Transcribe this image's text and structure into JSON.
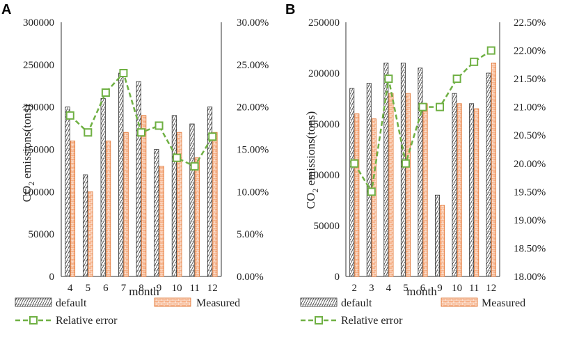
{
  "chart_data": [
    {
      "panel": "A",
      "type": "bar",
      "categories": [
        "4",
        "5",
        "6",
        "7",
        "8",
        "9",
        "10",
        "11",
        "12"
      ],
      "series": [
        {
          "name": "default",
          "values": [
            200000,
            120000,
            210000,
            240000,
            230000,
            150000,
            190000,
            180000,
            200000
          ]
        },
        {
          "name": "Measured",
          "values": [
            160000,
            100000,
            160000,
            170000,
            190000,
            130000,
            170000,
            140000,
            170000
          ]
        }
      ],
      "line_series": {
        "name": "Relative error",
        "values": [
          0.19,
          0.17,
          0.217,
          0.24,
          0.17,
          0.178,
          0.14,
          0.13,
          0.165
        ]
      },
      "xlabel": "month",
      "ylabel_prefix": "CO",
      "ylabel_sub": "2",
      "ylabel_suffix": " emissions(tons)",
      "ylim": [
        0,
        300000
      ],
      "y2lim": [
        0,
        0.3
      ],
      "yticks": [
        "0",
        "50000",
        "100000",
        "150000",
        "200000",
        "250000",
        "300000"
      ],
      "y2ticks": [
        "0.00%",
        "5.00%",
        "10.00%",
        "15.00%",
        "20.00%",
        "25.00%",
        "30.00%"
      ],
      "legend": {
        "default": "default",
        "measured": "Measured",
        "relative_error": "Relative error"
      }
    },
    {
      "panel": "B",
      "type": "bar",
      "categories": [
        "2",
        "3",
        "4",
        "5",
        "6",
        "9",
        "10",
        "11",
        "12"
      ],
      "series": [
        {
          "name": "default",
          "values": [
            185000,
            190000,
            210000,
            210000,
            205000,
            80000,
            180000,
            170000,
            200000
          ]
        },
        {
          "name": "Measured",
          "values": [
            160000,
            155000,
            180000,
            180000,
            170000,
            70000,
            170000,
            165000,
            210000
          ]
        }
      ],
      "line_series": {
        "name": "Relative error",
        "values": [
          0.2,
          0.195,
          0.215,
          0.2,
          0.21,
          0.21,
          0.215,
          0.218,
          0.22
        ]
      },
      "xlabel": "month",
      "ylabel_prefix": "CO",
      "ylabel_sub": "2",
      "ylabel_suffix": " emissions(tons)",
      "ylim": [
        0,
        250000
      ],
      "y2lim": [
        0.18,
        0.225
      ],
      "yticks": [
        "0",
        "50000",
        "100000",
        "150000",
        "200000",
        "250000"
      ],
      "y2ticks": [
        "18.00%",
        "18.50%",
        "19.00%",
        "19.50%",
        "20.00%",
        "20.50%",
        "21.00%",
        "21.50%",
        "22.00%",
        "22.50%"
      ],
      "legend": {
        "default": "default",
        "measured": "Measured",
        "relative_error": "Relative error"
      }
    }
  ],
  "colors": {
    "default_bar_stroke": "#333333",
    "measured_bar_fill": "#f6b28a",
    "measured_bar_stroke": "#e0702c",
    "line": "#6fb043",
    "axis": "#333333"
  }
}
